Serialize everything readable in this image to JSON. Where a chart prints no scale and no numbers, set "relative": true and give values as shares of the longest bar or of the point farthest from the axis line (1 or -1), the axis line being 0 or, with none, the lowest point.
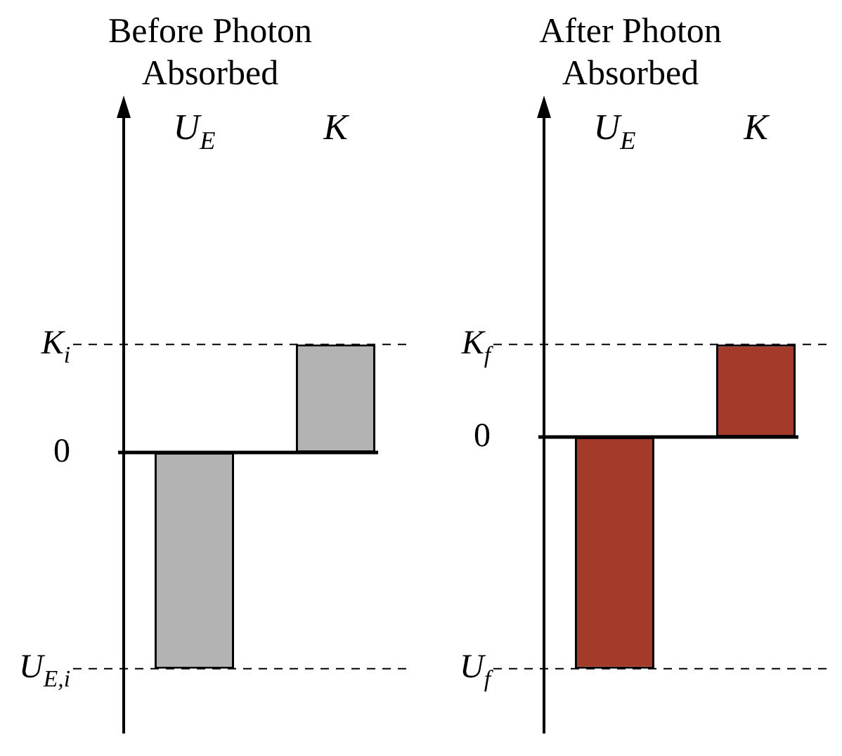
{
  "chart_data": [
    {
      "type": "bar",
      "title": "Before Photon Absorbed",
      "relative": true,
      "categories": [
        "U$_{E}$",
        "K"
      ],
      "series": [
        {
          "color": "#b3b3b3",
          "values": [
            -1,
            0.5
          ]
        }
      ],
      "ref_lines": [
        {
          "axis": "y",
          "value": 0,
          "label": "0",
          "line_style": "solid"
        },
        {
          "axis": "y",
          "value": 0.5,
          "label": "K$_{i}$",
          "line_style": "dashed"
        },
        {
          "axis": "y",
          "value": -1,
          "label": "U$_{E,i}$",
          "line_style": "dashed"
        }
      ],
      "legend": false
    },
    {
      "type": "bar",
      "title": "After Photon Absorbed",
      "relative": true,
      "categories": [
        "U$_{E}$",
        "K"
      ],
      "series": [
        {
          "color": "#a33a2a",
          "values": [
            -1,
            0.4
          ]
        }
      ],
      "ref_lines": [
        {
          "axis": "y",
          "value": 0,
          "label": "0",
          "line_style": "solid"
        },
        {
          "axis": "y",
          "value": 0.4,
          "label": "K$_{f}$",
          "line_style": "dashed"
        },
        {
          "axis": "y",
          "value": -1,
          "label": "U$_{f}$",
          "line_style": "dashed"
        }
      ],
      "legend": false
    }
  ]
}
